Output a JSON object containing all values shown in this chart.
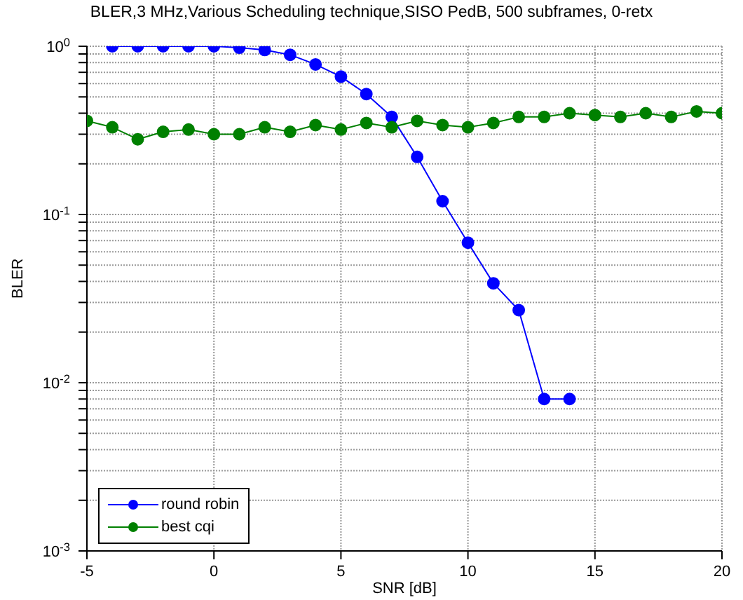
{
  "chart_data": {
    "type": "line",
    "title": "BLER,3 MHz,Various Scheduling technique,SISO PedB, 500 subframes, 0-retx",
    "xlabel": "SNR [dB]",
    "ylabel": "BLER",
    "series": [
      {
        "name": "round robin",
        "color": "#0000ff",
        "x": [
          -4,
          -3,
          -2,
          -1,
          0,
          1,
          2,
          3,
          4,
          5,
          6,
          7,
          8,
          9,
          10,
          11,
          12,
          13,
          14
        ],
        "values": [
          1.0,
          1.0,
          1.0,
          1.0,
          1.0,
          0.98,
          0.95,
          0.89,
          0.78,
          0.66,
          0.52,
          0.38,
          0.22,
          0.12,
          0.068,
          0.039,
          0.027,
          0.008,
          0.008
        ]
      },
      {
        "name": "best cqi",
        "color": "#008000",
        "x": [
          -5,
          -4,
          -3,
          -2,
          -1,
          0,
          1,
          2,
          3,
          4,
          5,
          6,
          7,
          8,
          9,
          10,
          11,
          12,
          13,
          14,
          15,
          16,
          17,
          18,
          19,
          20
        ],
        "values": [
          0.36,
          0.33,
          0.28,
          0.31,
          0.32,
          0.3,
          0.3,
          0.33,
          0.31,
          0.34,
          0.32,
          0.35,
          0.33,
          0.36,
          0.34,
          0.33,
          0.35,
          0.38,
          0.38,
          0.4,
          0.39,
          0.38,
          0.4,
          0.38,
          0.41,
          0.4
        ]
      }
    ],
    "xlim": [
      -5,
      20
    ],
    "xticks": [
      -5,
      0,
      5,
      10,
      15,
      20
    ],
    "log": true,
    "ylim": [
      0.001,
      1
    ],
    "yticks": [
      {
        "value": 0.001,
        "label": "10$^{-3}$"
      },
      {
        "value": 0.002,
        "label": null
      },
      {
        "value": 0.003,
        "label": null
      },
      {
        "value": 0.004,
        "label": null
      },
      {
        "value": 0.005,
        "label": null
      },
      {
        "value": 0.006,
        "label": null
      },
      {
        "value": 0.007,
        "label": null
      },
      {
        "value": 0.008,
        "label": null
      },
      {
        "value": 0.009,
        "label": null
      },
      {
        "value": 0.01,
        "label": "10$^{-2}$"
      },
      {
        "value": 0.02,
        "label": null
      },
      {
        "value": 0.03,
        "label": null
      },
      {
        "value": 0.04,
        "label": null
      },
      {
        "value": 0.05,
        "label": null
      },
      {
        "value": 0.06,
        "label": null
      },
      {
        "value": 0.07,
        "label": null
      },
      {
        "value": 0.08,
        "label": null
      },
      {
        "value": 0.09,
        "label": null
      },
      {
        "value": 0.1,
        "label": "10$^{-1}$"
      },
      {
        "value": 0.2,
        "label": null
      },
      {
        "value": 0.3,
        "label": null
      },
      {
        "value": 0.4,
        "label": null
      },
      {
        "value": 0.5,
        "label": null
      },
      {
        "value": 0.6,
        "label": null
      },
      {
        "value": 0.7,
        "label": null
      },
      {
        "value": 0.8,
        "label": null
      },
      {
        "value": 0.9,
        "label": null
      },
      {
        "value": 1,
        "label": "10$^{0}$"
      }
    ],
    "grid": true,
    "legend": "bottom left",
    "marker": "circle",
    "line_style": "solid"
  }
}
